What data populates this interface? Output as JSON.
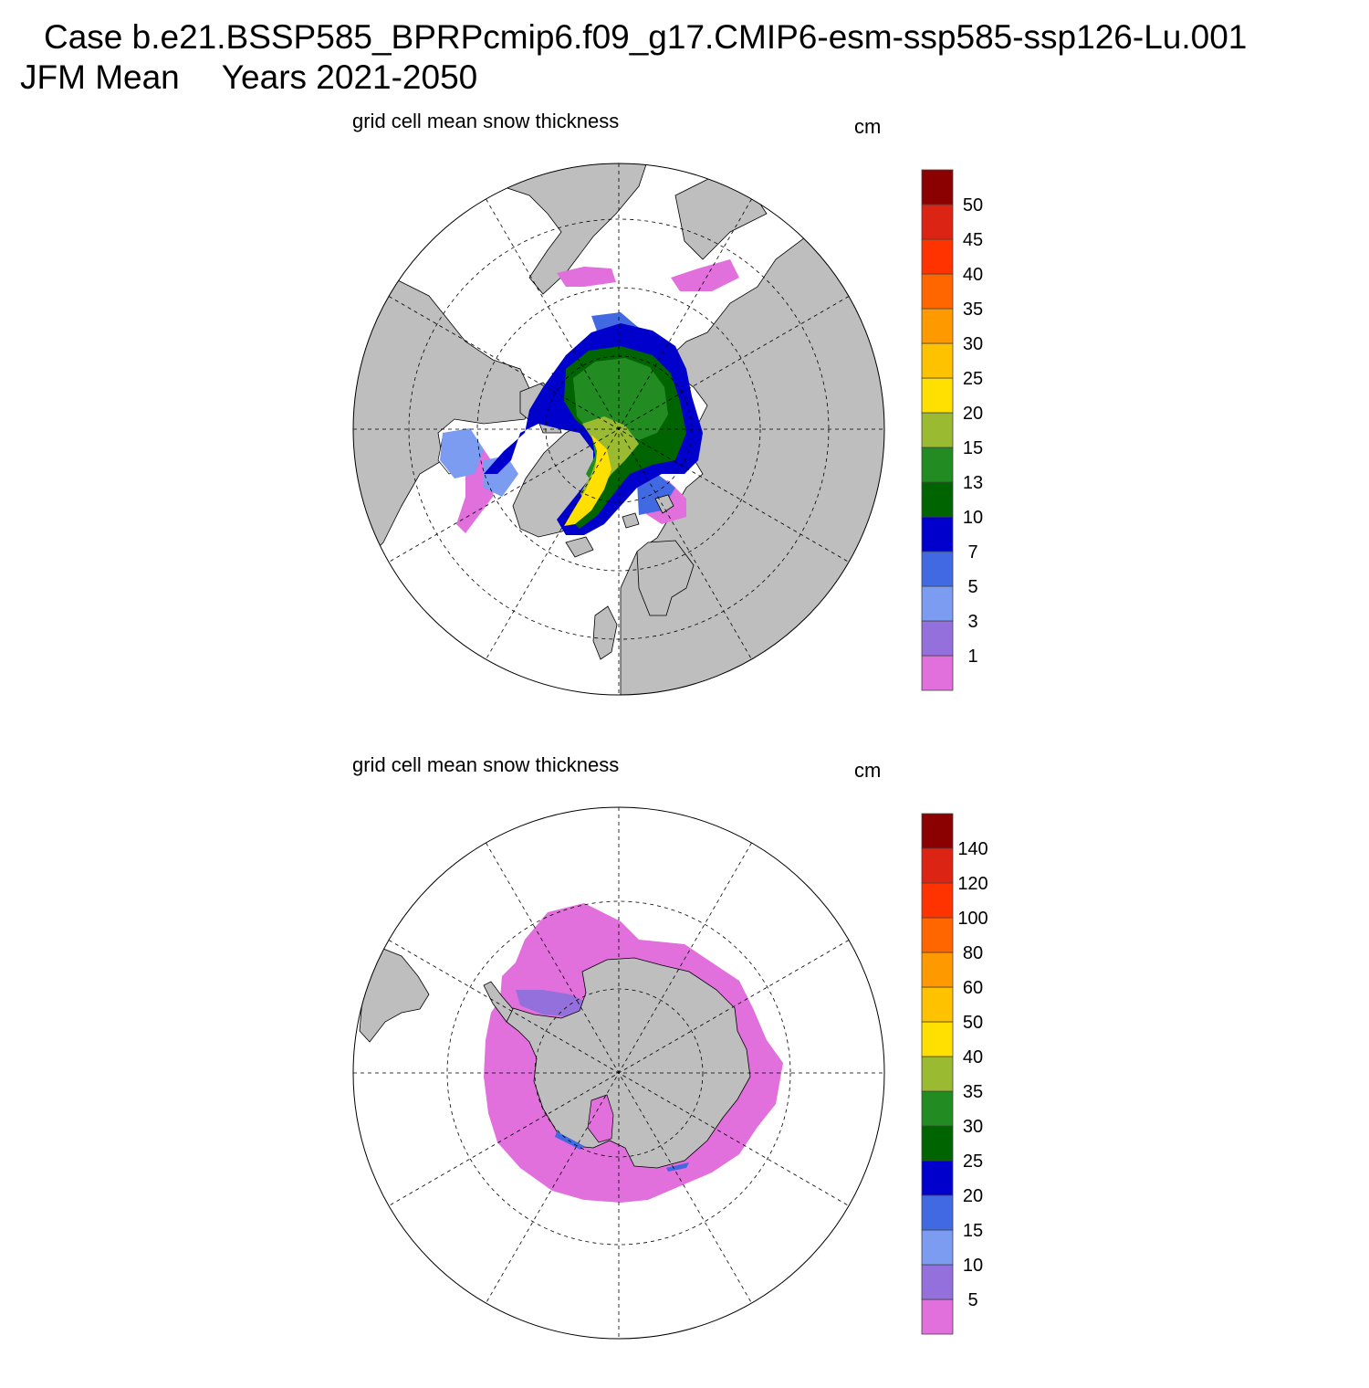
{
  "header": {
    "case_line": "Case b.e21.BSSP585_BPRPcmip6.f09_g17.CMIP6-esm-ssp585-ssp126-Lu.001",
    "season": "JFM Mean",
    "years": "Years 2021-2050"
  },
  "panels": [
    {
      "id": "north",
      "title": "grid cell mean snow thickness",
      "units": "cm",
      "hemisphere": "Northern Hemisphere polar stereographic",
      "colorbar": {
        "levels": [
          "1",
          "3",
          "5",
          "7",
          "10",
          "13",
          "15",
          "20",
          "25",
          "30",
          "35",
          "40",
          "45",
          "50"
        ],
        "colors": [
          "#e16fdc",
          "#9370db",
          "#7b9cf1",
          "#4169e1",
          "#0000cd",
          "#006400",
          "#228b22",
          "#9aba32",
          "#ffe000",
          "#ffc200",
          "#ff9900",
          "#ff6600",
          "#ff3300",
          "#dc2414",
          "#8b0000"
        ]
      }
    },
    {
      "id": "south",
      "title": "grid cell mean snow thickness",
      "units": "cm",
      "hemisphere": "Southern Hemisphere polar stereographic",
      "colorbar": {
        "levels": [
          "5",
          "10",
          "15",
          "20",
          "25",
          "30",
          "35",
          "40",
          "50",
          "60",
          "80",
          "100",
          "120",
          "140"
        ],
        "colors": [
          "#e16fdc",
          "#9370db",
          "#7b9cf1",
          "#4169e1",
          "#0000cd",
          "#006400",
          "#228b22",
          "#9aba32",
          "#ffe000",
          "#ffc200",
          "#ff9900",
          "#ff6600",
          "#ff3300",
          "#dc2414",
          "#8b0000"
        ]
      }
    }
  ],
  "colors": {
    "land": "#bebebe",
    "ocean": "#ffffff",
    "outline": "#000000"
  }
}
